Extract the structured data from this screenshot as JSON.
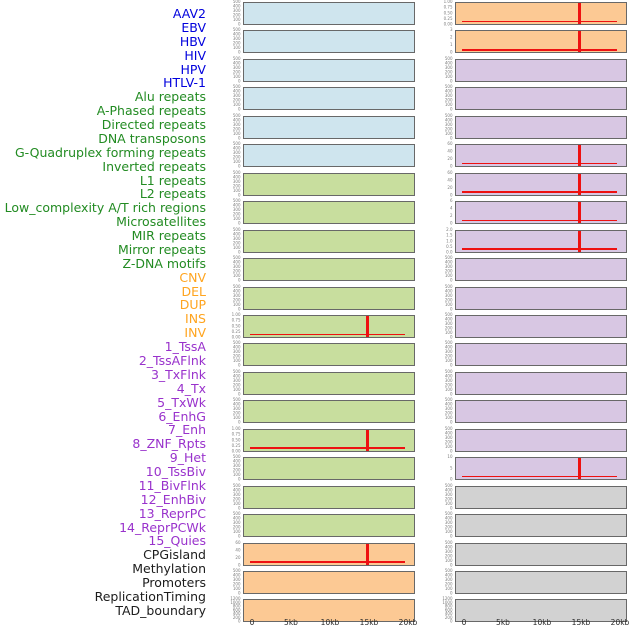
{
  "figure": {
    "signal_color": "#ee1111",
    "groups": {
      "virus": {
        "label_color": "#0000dd",
        "panel_color": "#cfe5ee"
      },
      "repeat": {
        "label_color": "#228b22",
        "panel_color": "#c8de9e"
      },
      "sv": {
        "label_color": "#ffa41e",
        "panel_color": "#fcc994"
      },
      "chromhmm": {
        "label_color": "#9932cc",
        "panel_color": "#d8c7e3"
      },
      "other": {
        "label_color": "#1c1c1c",
        "panel_color": "#d2d2d2"
      }
    }
  },
  "chart_data": {
    "type": "area",
    "title": "",
    "xlabel": "",
    "x_range_kb": [
      0,
      20
    ],
    "x_ticks": [
      "0",
      "5kb",
      "10kb",
      "15kb",
      "20kb"
    ],
    "spike_position_kb": 15,
    "grid": false,
    "layout_note": "44 tracks in 2 columns of 22 rows; red signal line near 0 with a spike at 15kb on small-scale tracks",
    "tracks": [
      {
        "label": "AAV2",
        "group": "virus",
        "column": "left",
        "row": 1,
        "y_ticks": [
          "500",
          "400",
          "300",
          "200",
          "100",
          "0"
        ],
        "spike": false
      },
      {
        "label": "EBV",
        "group": "virus",
        "column": "left",
        "row": 2,
        "y_ticks": [
          "500",
          "400",
          "300",
          "200",
          "100",
          "0"
        ],
        "spike": false
      },
      {
        "label": "HBV",
        "group": "virus",
        "column": "left",
        "row": 3,
        "y_ticks": [
          "500",
          "400",
          "300",
          "200",
          "100",
          "0"
        ],
        "spike": false
      },
      {
        "label": "HIV",
        "group": "virus",
        "column": "left",
        "row": 4,
        "y_ticks": [
          "500",
          "400",
          "300",
          "200",
          "100",
          "0"
        ],
        "spike": false
      },
      {
        "label": "HPV",
        "group": "virus",
        "column": "left",
        "row": 5,
        "y_ticks": [
          "500",
          "400",
          "300",
          "200",
          "100",
          "0"
        ],
        "spike": false
      },
      {
        "label": "HTLV-1",
        "group": "virus",
        "column": "left",
        "row": 6,
        "y_ticks": [
          "500",
          "400",
          "300",
          "200",
          "100",
          "0"
        ],
        "spike": false
      },
      {
        "label": "Alu repeats",
        "group": "repeat",
        "column": "left",
        "row": 7,
        "y_ticks": [
          "500",
          "400",
          "300",
          "200",
          "100",
          "0"
        ],
        "spike": false
      },
      {
        "label": "A-Phased repeats",
        "group": "repeat",
        "column": "left",
        "row": 8,
        "y_ticks": [
          "500",
          "400",
          "300",
          "200",
          "100",
          "0"
        ],
        "spike": false
      },
      {
        "label": "Directed repeats",
        "group": "repeat",
        "column": "left",
        "row": 9,
        "y_ticks": [
          "500",
          "400",
          "300",
          "200",
          "100",
          "0"
        ],
        "spike": false
      },
      {
        "label": "DNA transposons",
        "group": "repeat",
        "column": "left",
        "row": 10,
        "y_ticks": [
          "500",
          "400",
          "300",
          "200",
          "100",
          "0"
        ],
        "spike": false
      },
      {
        "label": "G-Quadruplex forming repeats",
        "group": "repeat",
        "column": "left",
        "row": 11,
        "y_ticks": [
          "500",
          "400",
          "300",
          "200",
          "100",
          "0"
        ],
        "spike": false
      },
      {
        "label": "Inverted repeats",
        "group": "repeat",
        "column": "left",
        "row": 12,
        "y_ticks": [
          "1.00",
          "0.75",
          "0.50",
          "0.25",
          "0.00"
        ],
        "spike": true
      },
      {
        "label": "L1 repeats",
        "group": "repeat",
        "column": "left",
        "row": 13,
        "y_ticks": [
          "500",
          "400",
          "300",
          "200",
          "100",
          "0"
        ],
        "spike": false
      },
      {
        "label": "L2 repeats",
        "group": "repeat",
        "column": "left",
        "row": 14,
        "y_ticks": [
          "500",
          "400",
          "300",
          "200",
          "100",
          "0"
        ],
        "spike": false
      },
      {
        "label": "Low_complexity A/T rich regions",
        "group": "repeat",
        "column": "left",
        "row": 15,
        "y_ticks": [
          "500",
          "400",
          "300",
          "200",
          "100",
          "0"
        ],
        "spike": false
      },
      {
        "label": "Microsatellites",
        "group": "repeat",
        "column": "left",
        "row": 16,
        "y_ticks": [
          "1.00",
          "0.75",
          "0.50",
          "0.25",
          "0.00"
        ],
        "spike": true
      },
      {
        "label": "MIR repeats",
        "group": "repeat",
        "column": "left",
        "row": 17,
        "y_ticks": [
          "500",
          "400",
          "300",
          "200",
          "100",
          "0"
        ],
        "spike": false
      },
      {
        "label": "Mirror repeats",
        "group": "repeat",
        "column": "left",
        "row": 18,
        "y_ticks": [
          "500",
          "400",
          "300",
          "200",
          "100",
          "0"
        ],
        "spike": false
      },
      {
        "label": "Z-DNA motifs",
        "group": "repeat",
        "column": "left",
        "row": 19,
        "y_ticks": [
          "500",
          "400",
          "300",
          "200",
          "100",
          "0"
        ],
        "spike": false
      },
      {
        "label": "CNV",
        "group": "sv",
        "column": "left",
        "row": 20,
        "y_ticks": [
          "60",
          "40",
          "20",
          "0"
        ],
        "spike": true
      },
      {
        "label": "DEL",
        "group": "sv",
        "column": "left",
        "row": 21,
        "y_ticks": [
          "500",
          "400",
          "300",
          "200",
          "100",
          "0"
        ],
        "spike": false
      },
      {
        "label": "DUP",
        "group": "sv",
        "column": "left",
        "row": 22,
        "y_ticks": [
          "1200",
          "1000",
          "800",
          "600",
          "400",
          "200",
          "0"
        ],
        "spike": false
      },
      {
        "label": "INS",
        "group": "sv",
        "column": "right",
        "row": 1,
        "y_ticks": [
          "1.00",
          "0.75",
          "0.50",
          "0.25",
          "0.00"
        ],
        "spike": true
      },
      {
        "label": "INV",
        "group": "sv",
        "column": "right",
        "row": 2,
        "y_ticks": [
          "3",
          "2",
          "1",
          "0"
        ],
        "spike": true
      },
      {
        "label": "1_TssA",
        "group": "chromhmm",
        "column": "right",
        "row": 3,
        "y_ticks": [
          "500",
          "400",
          "300",
          "200",
          "100",
          "0"
        ],
        "spike": false
      },
      {
        "label": "2_TssAFlnk",
        "group": "chromhmm",
        "column": "right",
        "row": 4,
        "y_ticks": [
          "500",
          "400",
          "300",
          "200",
          "100",
          "0"
        ],
        "spike": false
      },
      {
        "label": "3_TxFlnk",
        "group": "chromhmm",
        "column": "right",
        "row": 5,
        "y_ticks": [
          "500",
          "400",
          "300",
          "200",
          "100",
          "0"
        ],
        "spike": false
      },
      {
        "label": "4_Tx",
        "group": "chromhmm",
        "column": "right",
        "row": 6,
        "y_ticks": [
          "60",
          "40",
          "20",
          "0"
        ],
        "spike": true
      },
      {
        "label": "5_TxWk",
        "group": "chromhmm",
        "column": "right",
        "row": 7,
        "y_ticks": [
          "60",
          "40",
          "20",
          "0"
        ],
        "spike": true
      },
      {
        "label": "6_EnhG",
        "group": "chromhmm",
        "column": "right",
        "row": 8,
        "y_ticks": [
          "6",
          "4",
          "2",
          "0"
        ],
        "spike": true
      },
      {
        "label": "7_Enh",
        "group": "chromhmm",
        "column": "right",
        "row": 9,
        "y_ticks": [
          "2.0",
          "1.5",
          "1.0",
          "0.5",
          "0.0"
        ],
        "spike": true
      },
      {
        "label": "8_ZNF_Rpts",
        "group": "chromhmm",
        "column": "right",
        "row": 10,
        "y_ticks": [
          "500",
          "400",
          "300",
          "200",
          "100",
          "0"
        ],
        "spike": false
      },
      {
        "label": "9_Het",
        "group": "chromhmm",
        "column": "right",
        "row": 11,
        "y_ticks": [
          "500",
          "400",
          "300",
          "200",
          "100",
          "0"
        ],
        "spike": false
      },
      {
        "label": "10_TssBiv",
        "group": "chromhmm",
        "column": "right",
        "row": 12,
        "y_ticks": [
          "500",
          "400",
          "300",
          "200",
          "100",
          "0"
        ],
        "spike": false
      },
      {
        "label": "11_BivFlnk",
        "group": "chromhmm",
        "column": "right",
        "row": 13,
        "y_ticks": [
          "500",
          "400",
          "300",
          "200",
          "100",
          "0"
        ],
        "spike": false
      },
      {
        "label": "12_EnhBiv",
        "group": "chromhmm",
        "column": "right",
        "row": 14,
        "y_ticks": [
          "500",
          "400",
          "300",
          "200",
          "100",
          "0"
        ],
        "spike": false
      },
      {
        "label": "13_ReprPC",
        "group": "chromhmm",
        "column": "right",
        "row": 15,
        "y_ticks": [
          "500",
          "400",
          "300",
          "200",
          "100",
          "0"
        ],
        "spike": false
      },
      {
        "label": "14_ReprPCWk",
        "group": "chromhmm",
        "column": "right",
        "row": 16,
        "y_ticks": [
          "500",
          "400",
          "300",
          "200",
          "100",
          "0"
        ],
        "spike": false
      },
      {
        "label": "15_Quies",
        "group": "chromhmm",
        "column": "right",
        "row": 17,
        "y_ticks": [
          "10",
          "5",
          "0"
        ],
        "spike": true
      },
      {
        "label": "CPGisland",
        "group": "other",
        "column": "right",
        "row": 18,
        "y_ticks": [
          "500",
          "400",
          "300",
          "200",
          "100",
          "0"
        ],
        "spike": false
      },
      {
        "label": "Methylation",
        "group": "other",
        "column": "right",
        "row": 19,
        "y_ticks": [
          "500",
          "400",
          "300",
          "200",
          "100",
          "0"
        ],
        "spike": false
      },
      {
        "label": "Promoters",
        "group": "other",
        "column": "right",
        "row": 20,
        "y_ticks": [
          "500",
          "400",
          "300",
          "200",
          "100",
          "0"
        ],
        "spike": false
      },
      {
        "label": "ReplicationTiming",
        "group": "other",
        "column": "right",
        "row": 21,
        "y_ticks": [
          "500",
          "400",
          "300",
          "200",
          "100",
          "0"
        ],
        "spike": false
      },
      {
        "label": "TAD_boundary",
        "group": "other",
        "column": "right",
        "row": 22,
        "y_ticks": [
          "1200",
          "1000",
          "800",
          "600",
          "400",
          "200",
          "0"
        ],
        "spike": false
      }
    ]
  }
}
